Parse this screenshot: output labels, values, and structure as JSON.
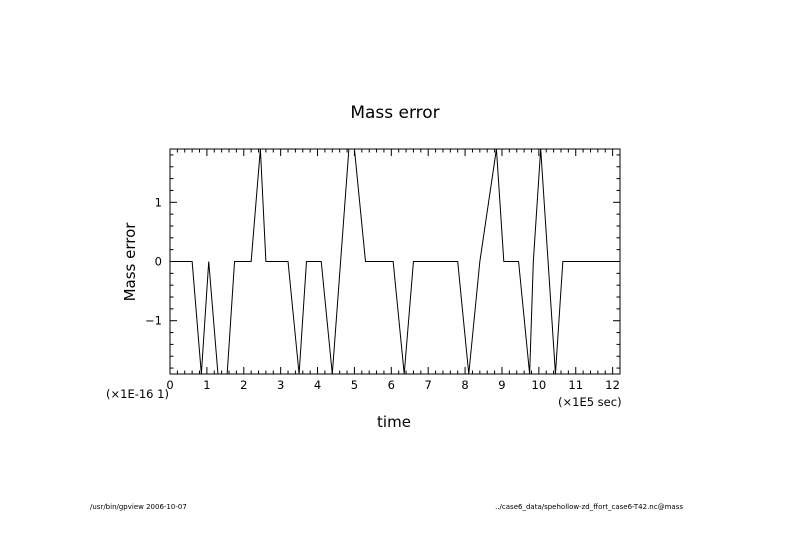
{
  "chart_data": {
    "type": "line",
    "title": "Mass error",
    "xlabel": "time",
    "ylabel": "Mass error",
    "x_scale_label": "(×1E5 sec)",
    "y_scale_label": "(×1E-16 1)",
    "xlim": [
      0,
      12.2
    ],
    "ylim": [
      -1.9,
      1.9
    ],
    "x_ticks": [
      0,
      1,
      2,
      3,
      4,
      5,
      6,
      7,
      8,
      9,
      10,
      11,
      12
    ],
    "y_ticks": [
      -1,
      0,
      1
    ],
    "grid": false,
    "series": [
      {
        "x": [
          0,
          0.6,
          0.85,
          1.05,
          1.3,
          1.55,
          1.75,
          2.2,
          2.45,
          2.6,
          3.2,
          3.5,
          3.7,
          4.1,
          4.4,
          4.85,
          5.0,
          5.3,
          6.05,
          6.35,
          6.6,
          7.8,
          8.1,
          8.4,
          8.85,
          9.05,
          9.45,
          9.75,
          9.85,
          10.05,
          10.45,
          10.65,
          12.2
        ],
        "y": [
          0,
          0,
          -1.9,
          0,
          -1.9,
          -1.9,
          0,
          0,
          1.9,
          0,
          0,
          -1.9,
          0,
          0,
          -1.9,
          1.9,
          1.9,
          0,
          0,
          -1.9,
          0,
          0,
          -1.9,
          0,
          1.9,
          0,
          0,
          -1.9,
          0,
          1.9,
          -1.9,
          0,
          0
        ]
      }
    ]
  },
  "footer": {
    "left": "/usr/bin/gpview  2006-10-07",
    "right": "../case6_data/spehollow-zd_ffort_case6-T42.nc@mass"
  }
}
